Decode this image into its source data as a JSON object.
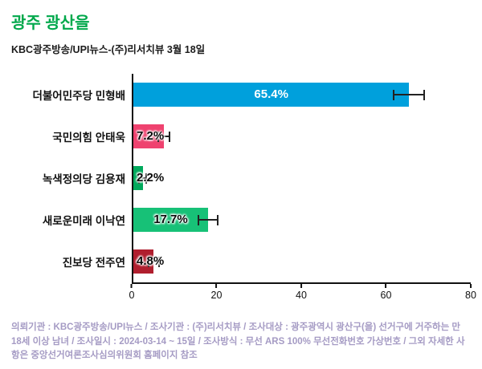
{
  "header": {
    "title": "광주 광산을",
    "title_color": "#00a84b",
    "subtitle": "KBC광주방송/UPI뉴스-(주)리서치뷰 3월 18일"
  },
  "chart_data": {
    "type": "bar",
    "orientation": "horizontal",
    "title": "광주 광산을",
    "subtitle": "KBC광주방송/UPI뉴스-(주)리서치뷰 3월 18일",
    "categories": [
      "더불어민주당 민형배",
      "국민의힘 안태욱",
      "녹색정의당 김용재",
      "새로운미래 이낙연",
      "진보당 전주연"
    ],
    "values": [
      65.4,
      7.2,
      2.2,
      17.7,
      4.8
    ],
    "value_labels": [
      "65.4%",
      "7.2%",
      "2.2%",
      "17.7%",
      "4.8%"
    ],
    "colors": [
      "#00a0dc",
      "#ef426f",
      "#00a95c",
      "#17c177",
      "#b01e2e"
    ],
    "errors": [
      3.8,
      1.5,
      1.1,
      2.4,
      1.4
    ],
    "xlim": [
      0,
      80
    ],
    "x_ticks": [
      0,
      20,
      40,
      60,
      80
    ],
    "grid": false,
    "legend": false,
    "error_bars": true
  },
  "footer": {
    "text": "의뢰기관 : KBC광주방송/UPI뉴스 / 조사기관 : (주)리서치뷰 / 조사대상 : 광주광역시 광산구(을) 선거구에 거주하는 만 18세 이상 남녀 / 조사일시 : 2024-03-14 ~ 15일 / 조사방식 : 무선 ARS 100% 무선전화번호 가상번호 / 그외 자세한 사항은 중앙선거여론조사심의위원회 홈페이지 참조"
  }
}
